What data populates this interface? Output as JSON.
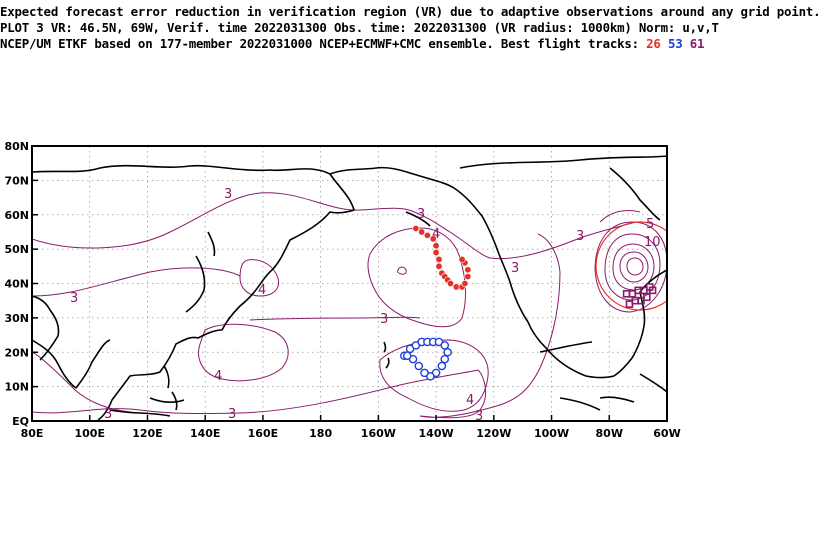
{
  "header": {
    "line1": "Expected forecast error reduction in verification region (VR) due to adaptive observations around any grid point.",
    "line2": "PLOT 3 VR: 46.5N, 69W, Verif. time 2022031300 Obs. time: 2022031300 (VR radius: 1000km) Norm: u,v,T",
    "line3_prefix": "NCEP/UM ETKF based on 177-member 2022031000 NCEP+ECMWF+CMC ensemble. Best flight tracks:",
    "track_ids": [
      "26",
      "53",
      "61"
    ]
  },
  "colors": {
    "contour": "#8b1a6b",
    "track_red": "#e8302a",
    "track_blue": "#1f3fe0",
    "track_purple": "#8b1a6b",
    "coast": "#000000",
    "grid": "#999999"
  },
  "axes": {
    "x_ticks": [
      "80E",
      "100E",
      "120E",
      "140E",
      "160E",
      "180",
      "160W",
      "140W",
      "120W",
      "100W",
      "80W",
      "60W"
    ],
    "y_ticks": [
      "EQ",
      "10N",
      "20N",
      "30N",
      "40N",
      "50N",
      "60N",
      "70N",
      "80N"
    ],
    "lon_range": [
      80,
      300
    ],
    "lat_range": [
      0,
      80
    ]
  },
  "contour_labels": [
    "3",
    "3",
    "3",
    "3",
    "3",
    "3",
    "3",
    "3",
    "4",
    "4",
    "4",
    "4",
    "3",
    "5",
    "10"
  ],
  "verification_region": {
    "lat": 46.5,
    "lon": -69,
    "radius_km": 1000
  },
  "flight_tracks": [
    {
      "id": "26",
      "color": "#e8302a",
      "marker": "filled-circle",
      "points": [
        [
          147,
          56
        ],
        [
          145,
          55
        ],
        [
          143,
          54
        ],
        [
          141,
          53
        ],
        [
          140,
          51
        ],
        [
          140,
          49
        ],
        [
          139,
          47
        ],
        [
          139,
          45
        ],
        [
          138,
          43
        ],
        [
          137,
          42
        ],
        [
          136,
          41
        ],
        [
          135,
          40
        ],
        [
          133,
          39
        ],
        [
          131,
          39
        ],
        [
          130,
          40
        ],
        [
          129,
          42
        ],
        [
          129,
          44
        ],
        [
          130,
          46
        ],
        [
          131,
          47
        ]
      ]
    },
    {
      "id": "53",
      "color": "#1f3fe0",
      "marker": "open-circle",
      "points": [
        [
          151,
          19
        ],
        [
          149,
          21
        ],
        [
          147,
          22
        ],
        [
          145,
          23
        ],
        [
          143,
          23
        ],
        [
          141,
          23
        ],
        [
          139,
          23
        ],
        [
          137,
          22
        ],
        [
          136,
          20
        ],
        [
          137,
          18
        ],
        [
          138,
          16
        ],
        [
          140,
          14
        ],
        [
          142,
          13
        ],
        [
          144,
          14
        ],
        [
          146,
          16
        ],
        [
          148,
          18
        ],
        [
          150,
          19
        ]
      ]
    },
    {
      "id": "61",
      "color": "#8b1a6b",
      "marker": "square",
      "points": [
        [
          74,
          37
        ],
        [
          72,
          37
        ],
        [
          70,
          38
        ],
        [
          68,
          38
        ],
        [
          66,
          39
        ],
        [
          65,
          38
        ],
        [
          67,
          36
        ],
        [
          69,
          35
        ],
        [
          71,
          35
        ],
        [
          73,
          34
        ]
      ]
    }
  ]
}
